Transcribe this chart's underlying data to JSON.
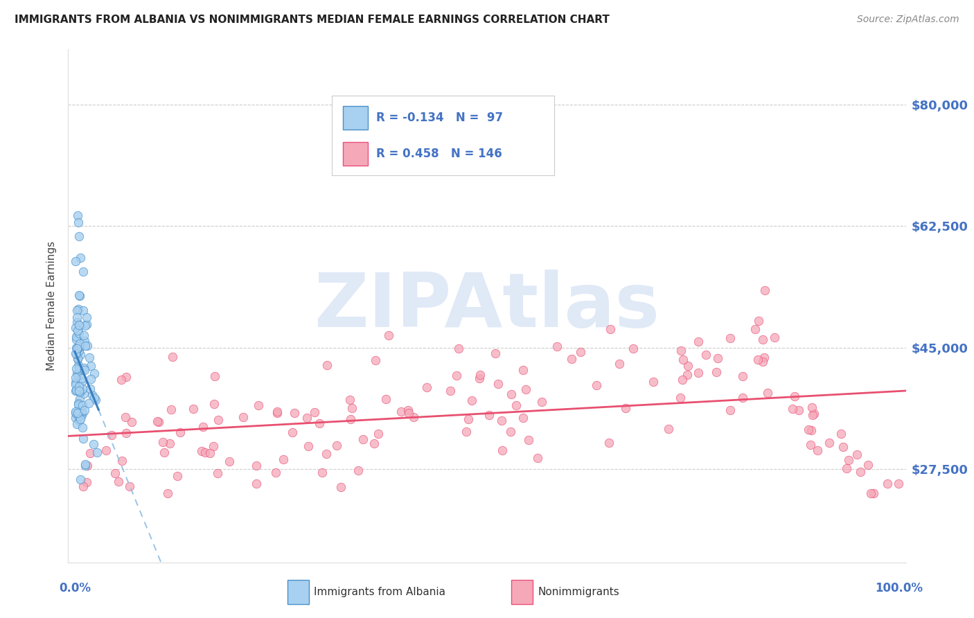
{
  "title": "IMMIGRANTS FROM ALBANIA VS NONIMMIGRANTS MEDIAN FEMALE EARNINGS CORRELATION CHART",
  "source": "Source: ZipAtlas.com",
  "ylabel": "Median Female Earnings",
  "ytick_values": [
    27500,
    45000,
    62500,
    80000
  ],
  "ytick_labels": [
    "$27,500",
    "$45,000",
    "$62,500",
    "$80,000"
  ],
  "ymin": 14000,
  "ymax": 88000,
  "xmin": -0.008,
  "xmax": 1.008,
  "R_blue": -0.134,
  "N_blue": 97,
  "R_pink": 0.458,
  "N_pink": 146,
  "legend_label_blue": "Immigrants from Albania",
  "legend_label_pink": "Nonimmigrants",
  "color_blue_fill": "#A8D0F0",
  "color_blue_edge": "#4A90C8",
  "color_blue_line_solid": "#3A7FC1",
  "color_blue_line_dash": "#99C4E8",
  "color_pink_fill": "#F5A8B8",
  "color_pink_edge": "#E8507A",
  "color_pink_line": "#E85070",
  "color_axis_val": "#4472C4",
  "color_title": "#222222",
  "watermark_color": "#C8D8F0",
  "grid_color": "#CCCCCC",
  "bg_color": "#FFFFFF"
}
